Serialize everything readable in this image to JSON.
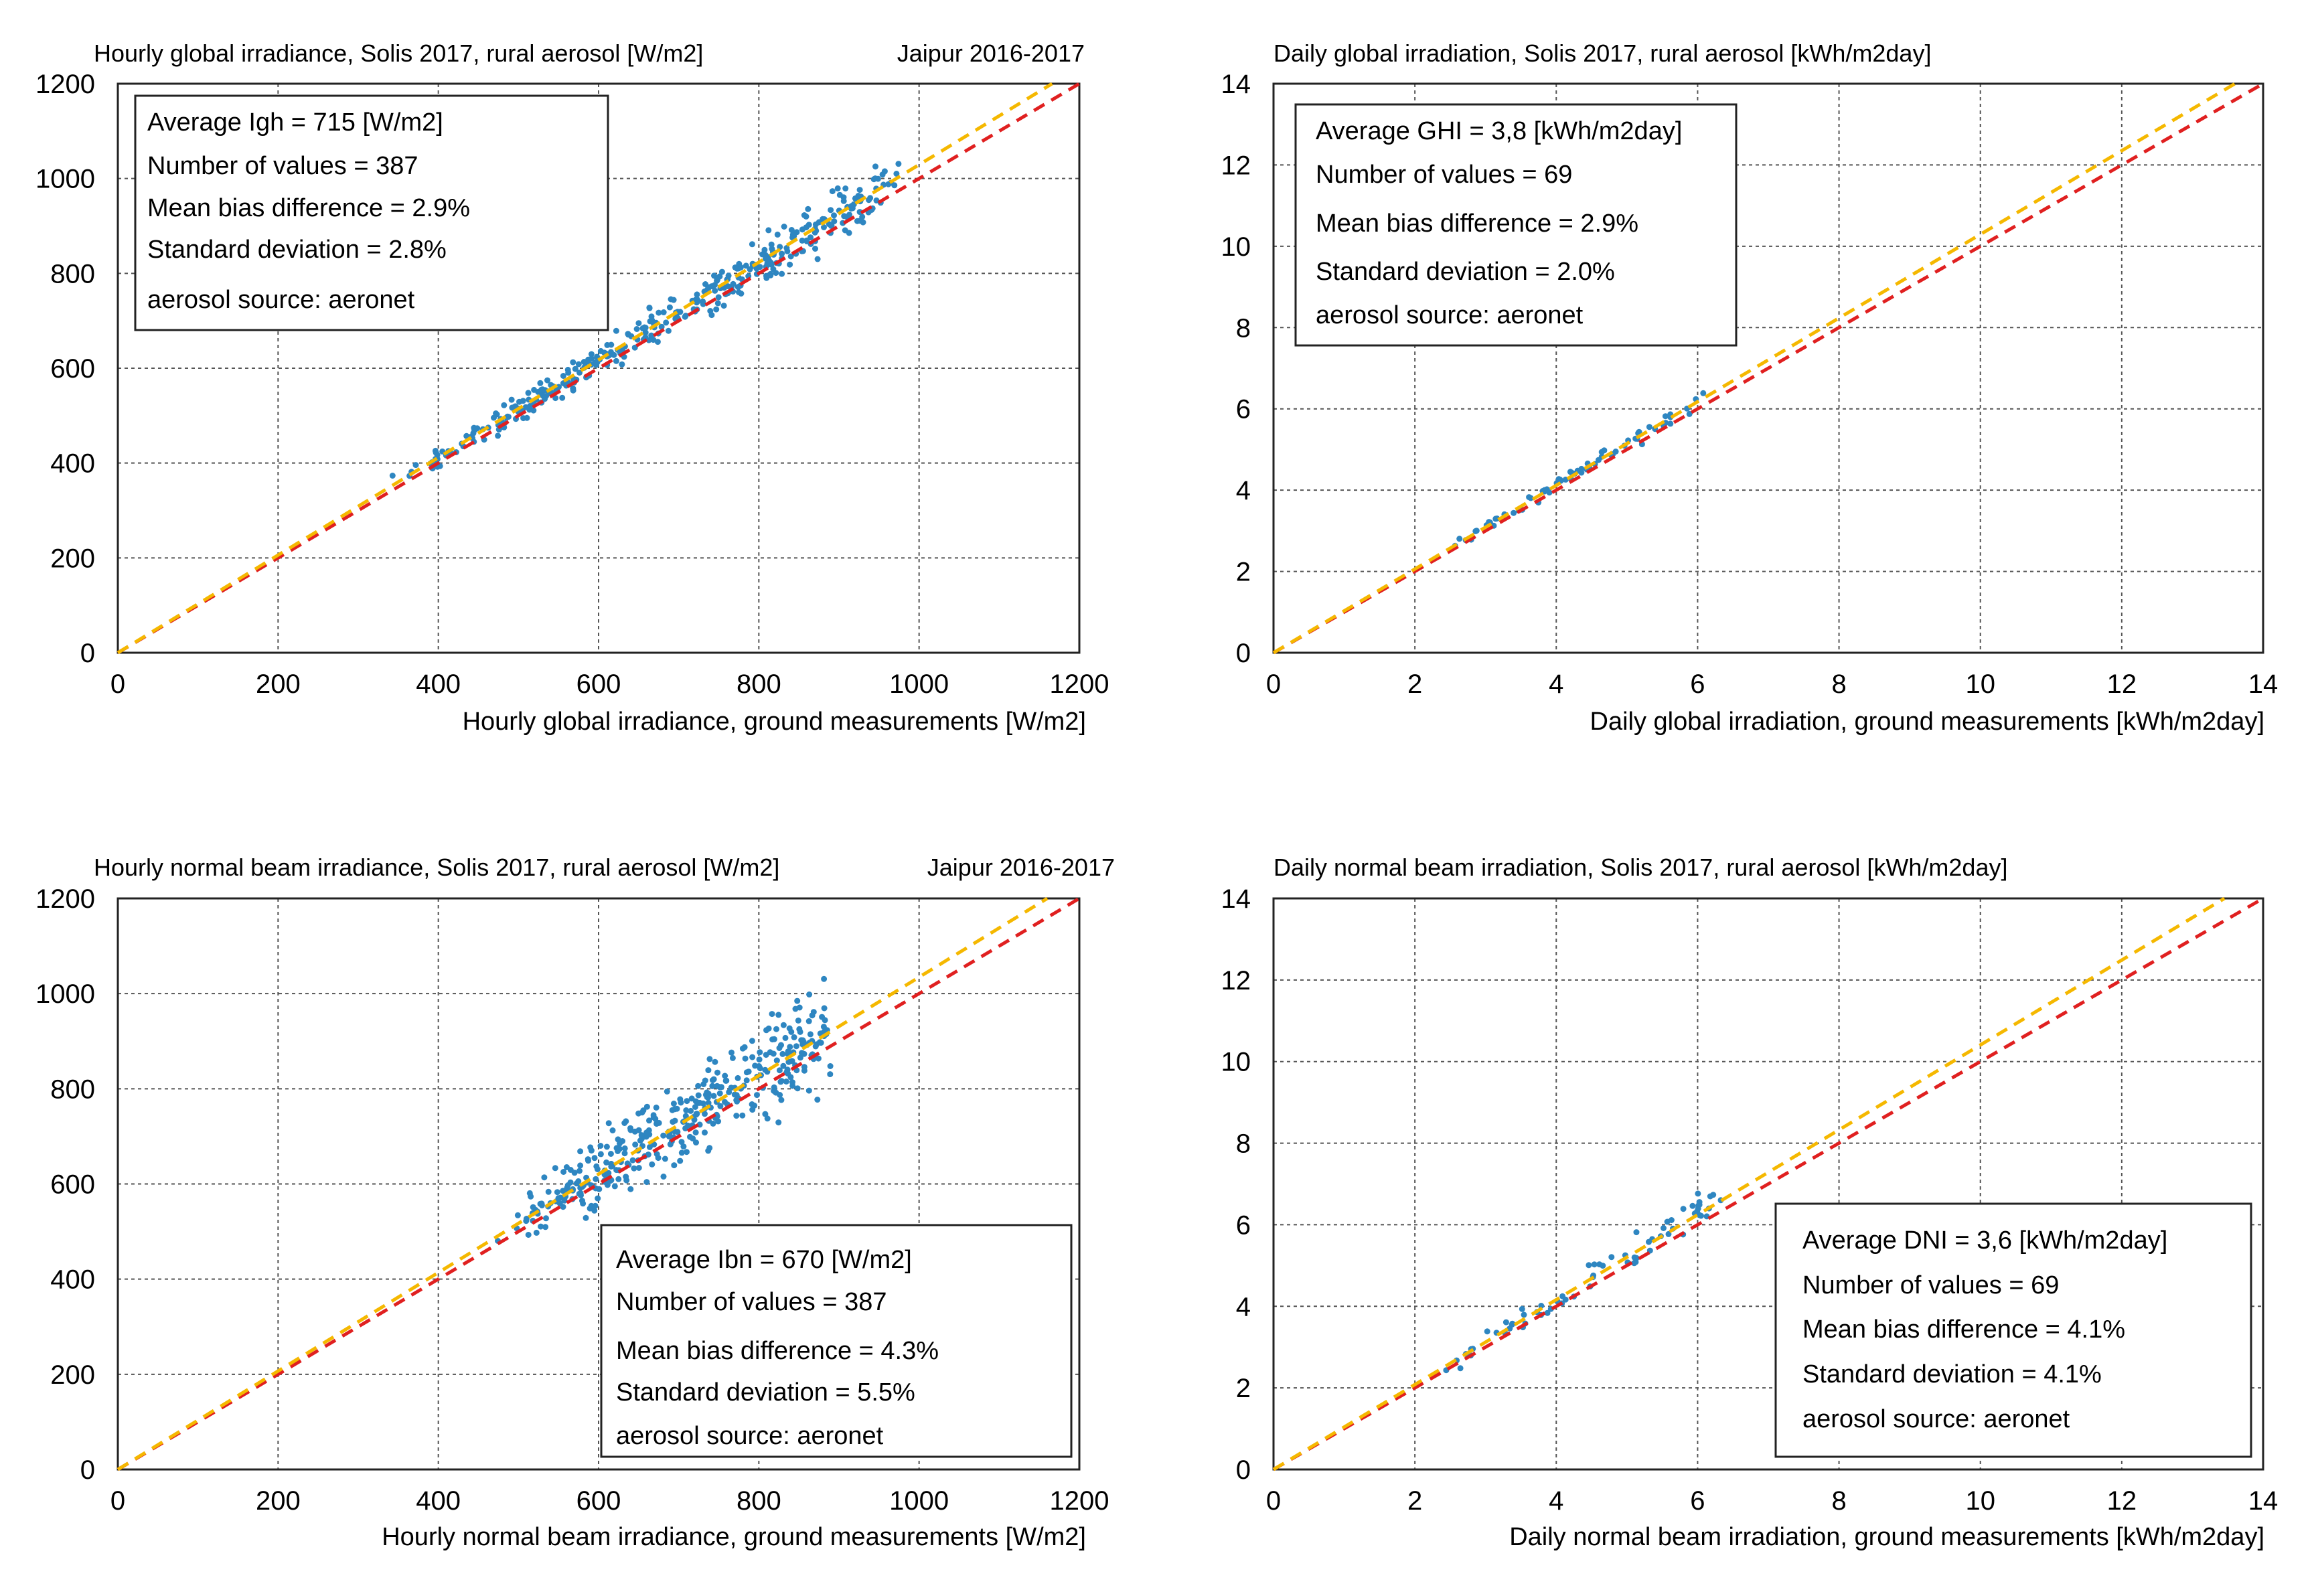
{
  "chart_data": [
    {
      "type": "scatter",
      "title": "Hourly global irradiance, Solis 2017,  rural aerosol [W/m2]",
      "location": "Jaipur 2016-2017",
      "xlabel": "Hourly global irradiance,    ground measurements [W/m2]",
      "xlim": [
        0,
        1200
      ],
      "ylim": [
        0,
        1200
      ],
      "xticks": [
        0,
        200,
        400,
        600,
        800,
        1000,
        1200
      ],
      "yticks": [
        0,
        200,
        400,
        600,
        800,
        1000,
        1200
      ],
      "xtick_labels": [
        "0",
        "200",
        "400",
        "600",
        "800",
        "1000",
        "1200"
      ],
      "ytick_labels": [
        "0",
        "200",
        "400",
        "600",
        "800",
        "1000",
        "1200"
      ],
      "grid": true,
      "stats_box_position": "top-left",
      "stats": [
        "Average Igh = 715 [W/m2]",
        "Number of values = 387",
        "Mean bias difference = 2.9%",
        "Standard deviation = 2.8%",
        "aerosol source: aeronet"
      ],
      "reference_lines": [
        {
          "name": "1:1 line",
          "color": "#e02020",
          "x": [
            0,
            1200
          ],
          "y": [
            0,
            1200
          ]
        },
        {
          "name": "fit line",
          "color": "#f5b800",
          "x": [
            0,
            1200
          ],
          "y": [
            0,
            1235
          ]
        }
      ],
      "cloud": {
        "x_min": 280,
        "x_max": 975,
        "ratio": 1.029,
        "spread": 0.028,
        "count": 387
      },
      "points_color": "#2e86c1"
    },
    {
      "type": "scatter",
      "title": "Daily global irradiation, Solis 2017,  rural aerosol [kWh/m2day]",
      "location": "",
      "xlabel": "Daily global irradiation,    ground measurements [kWh/m2day]",
      "xlim": [
        0,
        14
      ],
      "ylim": [
        0,
        14
      ],
      "xticks": [
        0,
        2,
        4,
        6,
        8,
        10,
        12,
        14
      ],
      "yticks": [
        0,
        2,
        4,
        6,
        8,
        10,
        12,
        14
      ],
      "xtick_labels": [
        "0",
        "2",
        "4",
        "6",
        "8",
        "10",
        "12",
        "14"
      ],
      "ytick_labels": [
        "0",
        "2",
        "4",
        "6",
        "8",
        "10",
        "12",
        "14"
      ],
      "grid": true,
      "stats_box_position": "top-left",
      "stats": [
        "Average GHI = 3,8 [kWh/m2day]",
        "Number of values = 69",
        "Mean bias difference = 2.9%",
        "Standard deviation = 2.0%",
        "aerosol source: aeronet"
      ],
      "reference_lines": [
        {
          "name": "1:1 line",
          "color": "#e02020",
          "x": [
            0,
            14
          ],
          "y": [
            0,
            14
          ]
        },
        {
          "name": "fit line",
          "color": "#f5b800",
          "x": [
            0,
            14
          ],
          "y": [
            0,
            14.41
          ]
        }
      ],
      "cloud": {
        "x_min": 1.9,
        "x_max": 6.1,
        "ratio": 1.029,
        "spread": 0.02,
        "count": 69
      },
      "points_color": "#2e86c1"
    },
    {
      "type": "scatter",
      "title": "Hourly normal beam irradiance, Solis 2017,  rural aerosol [W/m2]",
      "location": "Jaipur 2016-2017",
      "xlabel": "Hourly normal beam irradiance,    ground measurements [W/m2]",
      "xlim": [
        0,
        1200
      ],
      "ylim": [
        0,
        1200
      ],
      "xticks": [
        0,
        200,
        400,
        600,
        800,
        1000,
        1200
      ],
      "yticks": [
        0,
        200,
        400,
        600,
        800,
        1000,
        1200
      ],
      "xtick_labels": [
        "0",
        "200",
        "400",
        "600",
        "800",
        "1000",
        "1200"
      ],
      "ytick_labels": [
        "0",
        "200",
        "400",
        "600",
        "800",
        "1000",
        "1200"
      ],
      "grid": true,
      "stats_box_position": "bottom-right",
      "stats": [
        "Average Ibn = 670 [W/m2]",
        "Number of values = 387",
        "Mean bias difference = 4.3%",
        "Standard deviation = 5.5%",
        "aerosol source: aeronet"
      ],
      "reference_lines": [
        {
          "name": "1:1 line",
          "color": "#e02020",
          "x": [
            0,
            1200
          ],
          "y": [
            0,
            1200
          ]
        },
        {
          "name": "fit line",
          "color": "#f5b800",
          "x": [
            0,
            1160
          ],
          "y": [
            0,
            1200
          ]
        }
      ],
      "cloud": {
        "x_min": 440,
        "x_max": 890,
        "ratio": 1.043,
        "spread": 0.055,
        "count": 387
      },
      "points_color": "#2e86c1"
    },
    {
      "type": "scatter",
      "title": "Daily normal beam irradiation, Solis 2017,  rural aerosol [kWh/m2day]",
      "location": "",
      "xlabel": "Daily normal beam irradiation,    ground measurements [kWh/m2day]",
      "xlim": [
        0,
        14
      ],
      "ylim": [
        0,
        14
      ],
      "xticks": [
        0,
        2,
        4,
        6,
        8,
        10,
        12,
        14
      ],
      "yticks": [
        0,
        2,
        4,
        6,
        8,
        10,
        12,
        14
      ],
      "xtick_labels": [
        "0",
        "2",
        "4",
        "6",
        "8",
        "10",
        "12",
        "14"
      ],
      "ytick_labels": [
        "0",
        "2",
        "4",
        "6",
        "8",
        "10",
        "12",
        "14"
      ],
      "grid": true,
      "stats_box_position": "bottom-right",
      "stats": [
        "Average DNI = 3,6 [kWh/m2day]",
        "Number of values = 69",
        "Mean bias difference = 4.1%",
        "Standard deviation = 4.1%",
        "aerosol source: aeronet"
      ],
      "reference_lines": [
        {
          "name": "1:1 line",
          "color": "#e02020",
          "x": [
            0,
            14
          ],
          "y": [
            0,
            14
          ]
        },
        {
          "name": "fit line",
          "color": "#f5b800",
          "x": [
            0,
            14
          ],
          "y": [
            0,
            14.57
          ]
        }
      ],
      "cloud": {
        "x_min": 1.7,
        "x_max": 6.4,
        "ratio": 1.041,
        "spread": 0.041,
        "count": 69
      },
      "points_color": "#2e86c1"
    }
  ]
}
